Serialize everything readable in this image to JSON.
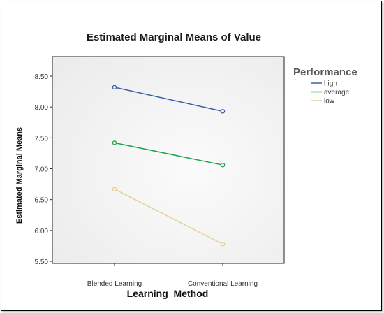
{
  "chart_data": {
    "type": "line",
    "title": "Estimated Marginal Means of Value",
    "xlabel": "Learning_Method",
    "ylabel": "Estimated Marginal Means",
    "categories": [
      "Blended Learning",
      "Conventional Learning"
    ],
    "ylim": [
      5.5,
      8.5
    ],
    "yticks": [
      8.5,
      8.0,
      7.5,
      7.0,
      6.5,
      6.0,
      5.5
    ],
    "ytick_labels": [
      "8.50",
      "8.00",
      "7.50",
      "7.00",
      "6.50",
      "6.00",
      "5.50"
    ],
    "grid": false,
    "legend": {
      "title": "Performance",
      "position": "right"
    },
    "series": [
      {
        "name": "high",
        "values": [
          8.32,
          7.93
        ],
        "color": "#3a5dab"
      },
      {
        "name": "average",
        "values": [
          7.42,
          7.06
        ],
        "color": "#1fa34a"
      },
      {
        "name": "low",
        "values": [
          6.67,
          5.78
        ],
        "color": "#e6cf9a"
      }
    ]
  }
}
